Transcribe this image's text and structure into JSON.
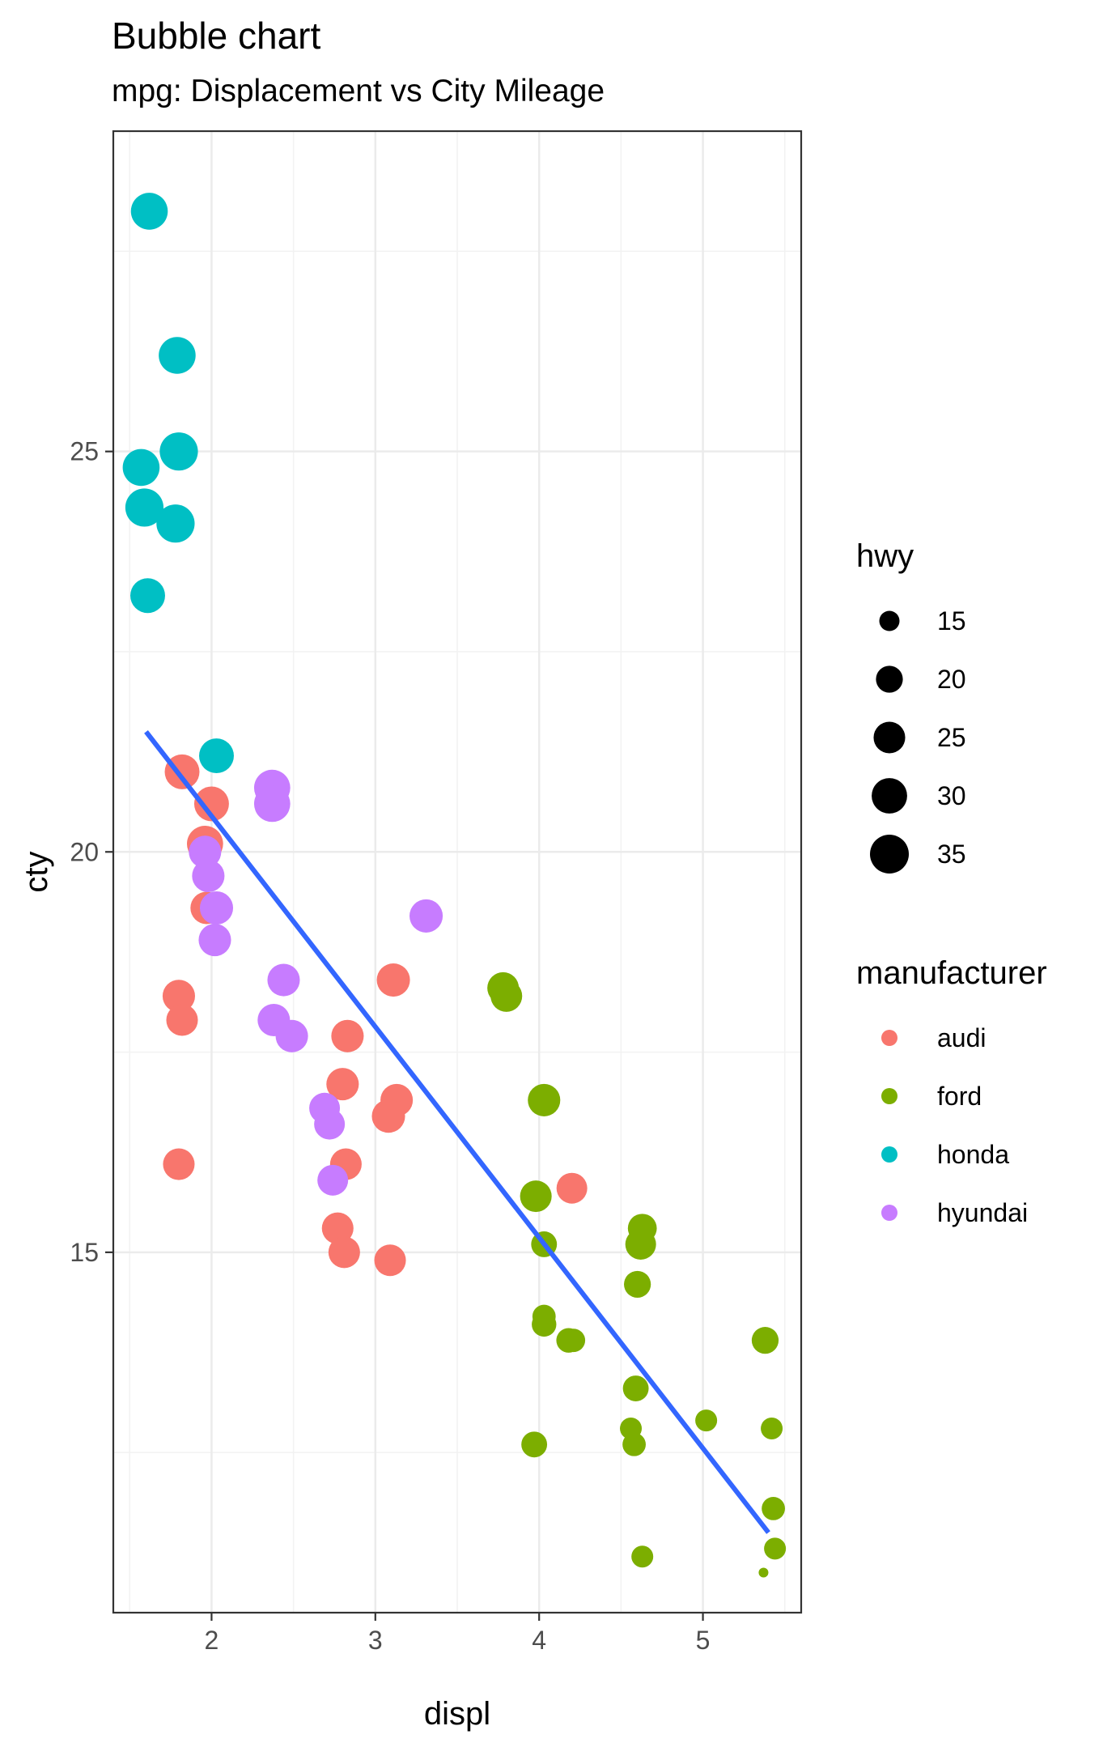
{
  "chart_data": {
    "type": "scatter",
    "title": "Bubble chart",
    "subtitle": "mpg: Displacement vs City Mileage",
    "xlabel": "displ",
    "ylabel": "cty",
    "xlim": [
      1.4,
      5.6
    ],
    "ylim": [
      10.5,
      29
    ],
    "x_ticks": [
      2,
      3,
      4,
      5
    ],
    "y_ticks": [
      15,
      20,
      25
    ],
    "x_tick_labels": [
      "2",
      "3",
      "4",
      "5"
    ],
    "y_tick_labels": [
      "15",
      "20",
      "25"
    ],
    "grid": true,
    "size_legend": {
      "title": "hwy",
      "values": [
        15,
        20,
        25,
        30,
        35
      ],
      "labels": [
        "15",
        "20",
        "25",
        "30",
        "35"
      ]
    },
    "color_legend": {
      "title": "manufacturer",
      "entries": [
        {
          "name": "audi",
          "color": "#F8766D"
        },
        {
          "name": "ford",
          "color": "#7CAE00"
        },
        {
          "name": "honda",
          "color": "#00BFC4"
        },
        {
          "name": "hyundai",
          "color": "#C77CFF"
        }
      ]
    },
    "trend_line": {
      "color": "#3366FF",
      "x": [
        1.6,
        5.4
      ],
      "y": [
        21.5,
        11.5
      ]
    },
    "series": [
      {
        "name": "audi",
        "color": "#F8766D",
        "points": [
          {
            "x": 1.82,
            "y": 21.0,
            "hwy": 29
          },
          {
            "x": 2.0,
            "y": 20.6,
            "hwy": 29
          },
          {
            "x": 1.96,
            "y": 20.1,
            "hwy": 31
          },
          {
            "x": 1.97,
            "y": 19.3,
            "hwy": 26
          },
          {
            "x": 1.8,
            "y": 18.2,
            "hwy": 26
          },
          {
            "x": 1.82,
            "y": 17.9,
            "hwy": 25
          },
          {
            "x": 1.8,
            "y": 16.1,
            "hwy": 25
          },
          {
            "x": 2.83,
            "y": 17.7,
            "hwy": 26
          },
          {
            "x": 2.8,
            "y": 17.1,
            "hwy": 26
          },
          {
            "x": 3.11,
            "y": 18.4,
            "hwy": 27
          },
          {
            "x": 3.13,
            "y": 16.9,
            "hwy": 26
          },
          {
            "x": 3.08,
            "y": 16.7,
            "hwy": 27
          },
          {
            "x": 2.82,
            "y": 16.1,
            "hwy": 25
          },
          {
            "x": 2.77,
            "y": 15.3,
            "hwy": 25
          },
          {
            "x": 2.81,
            "y": 15.0,
            "hwy": 25
          },
          {
            "x": 3.09,
            "y": 14.9,
            "hwy": 25
          },
          {
            "x": 4.2,
            "y": 15.8,
            "hwy": 24
          }
        ]
      },
      {
        "name": "ford",
        "color": "#7CAE00",
        "points": [
          {
            "x": 3.78,
            "y": 18.3,
            "hwy": 25
          },
          {
            "x": 3.8,
            "y": 18.2,
            "hwy": 25
          },
          {
            "x": 4.03,
            "y": 16.9,
            "hwy": 26
          },
          {
            "x": 3.98,
            "y": 15.7,
            "hwy": 25
          },
          {
            "x": 4.03,
            "y": 15.1,
            "hwy": 19
          },
          {
            "x": 4.63,
            "y": 15.3,
            "hwy": 22
          },
          {
            "x": 4.62,
            "y": 15.1,
            "hwy": 24
          },
          {
            "x": 4.6,
            "y": 14.6,
            "hwy": 20
          },
          {
            "x": 4.03,
            "y": 14.2,
            "hwy": 17
          },
          {
            "x": 4.03,
            "y": 14.1,
            "hwy": 18
          },
          {
            "x": 4.18,
            "y": 13.9,
            "hwy": 18
          },
          {
            "x": 4.21,
            "y": 13.9,
            "hwy": 17
          },
          {
            "x": 5.38,
            "y": 13.9,
            "hwy": 20
          },
          {
            "x": 4.59,
            "y": 13.3,
            "hwy": 19
          },
          {
            "x": 5.02,
            "y": 12.9,
            "hwy": 16
          },
          {
            "x": 5.42,
            "y": 12.8,
            "hwy": 16
          },
          {
            "x": 4.56,
            "y": 12.8,
            "hwy": 16
          },
          {
            "x": 4.58,
            "y": 12.6,
            "hwy": 17
          },
          {
            "x": 3.97,
            "y": 12.6,
            "hwy": 19
          },
          {
            "x": 5.43,
            "y": 11.8,
            "hwy": 17
          },
          {
            "x": 5.44,
            "y": 11.3,
            "hwy": 16
          },
          {
            "x": 4.63,
            "y": 11.2,
            "hwy": 16
          },
          {
            "x": 5.37,
            "y": 11.0,
            "hwy": 12
          }
        ]
      },
      {
        "name": "honda",
        "color": "#00BFC4",
        "points": [
          {
            "x": 1.62,
            "y": 28.0,
            "hwy": 32
          },
          {
            "x": 1.79,
            "y": 26.2,
            "hwy": 32
          },
          {
            "x": 1.8,
            "y": 25.0,
            "hwy": 34
          },
          {
            "x": 1.57,
            "y": 24.8,
            "hwy": 32
          },
          {
            "x": 1.59,
            "y": 24.3,
            "hwy": 34
          },
          {
            "x": 1.78,
            "y": 24.1,
            "hwy": 34
          },
          {
            "x": 1.61,
            "y": 23.2,
            "hwy": 29
          },
          {
            "x": 2.03,
            "y": 21.2,
            "hwy": 29
          }
        ]
      },
      {
        "name": "hyundai",
        "color": "#C77CFF",
        "points": [
          {
            "x": 2.37,
            "y": 20.8,
            "hwy": 31
          },
          {
            "x": 2.37,
            "y": 20.6,
            "hwy": 31
          },
          {
            "x": 1.96,
            "y": 20.0,
            "hwy": 26
          },
          {
            "x": 1.98,
            "y": 19.7,
            "hwy": 26
          },
          {
            "x": 2.03,
            "y": 19.3,
            "hwy": 27
          },
          {
            "x": 2.02,
            "y": 18.9,
            "hwy": 26
          },
          {
            "x": 3.31,
            "y": 19.2,
            "hwy": 27
          },
          {
            "x": 2.44,
            "y": 18.4,
            "hwy": 26
          },
          {
            "x": 2.38,
            "y": 17.9,
            "hwy": 26
          },
          {
            "x": 2.49,
            "y": 17.7,
            "hwy": 26
          },
          {
            "x": 2.69,
            "y": 16.8,
            "hwy": 24
          },
          {
            "x": 2.72,
            "y": 16.6,
            "hwy": 24
          },
          {
            "x": 2.74,
            "y": 15.9,
            "hwy": 24
          }
        ]
      }
    ]
  }
}
